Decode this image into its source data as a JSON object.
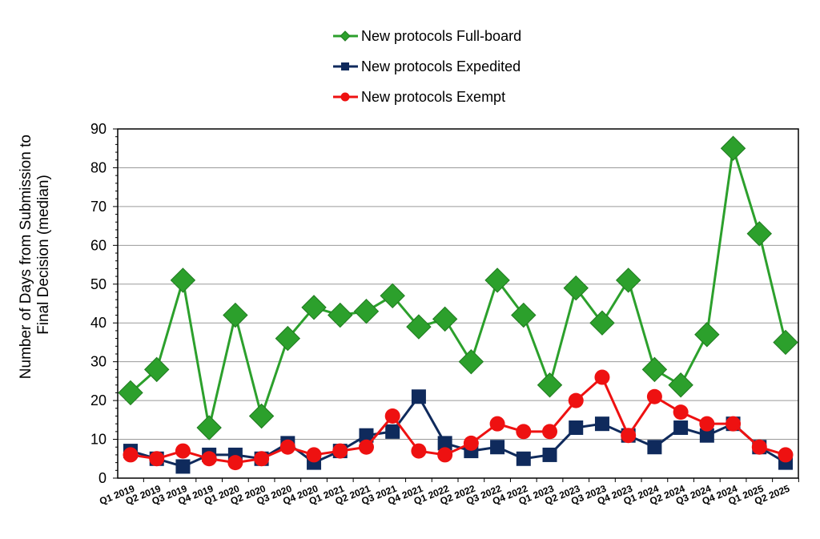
{
  "chart_data": {
    "type": "line",
    "ylabel": [
      "Number of Days from Submission to",
      "Final Decision (median)"
    ],
    "ylim": [
      0,
      90
    ],
    "yticks": [
      0,
      10,
      20,
      30,
      40,
      50,
      60,
      70,
      80,
      90
    ],
    "grid": "horizontal",
    "legend_position": "top-center",
    "categories": [
      "Q1 2019",
      "Q2 2019",
      "Q3 2019",
      "Q4 2019",
      "Q1 2020",
      "Q2 2020",
      "Q3 2020",
      "Q4 2020",
      "Q1 2021",
      "Q2 2021",
      "Q3 2021",
      "Q4 2021",
      "Q1 2022",
      "Q2 2022",
      "Q3 2022",
      "Q4 2022",
      "Q1 2023",
      "Q2 2023",
      "Q3 2023",
      "Q4 2023",
      "Q1 2024",
      "Q2 2024",
      "Q3 2024",
      "Q4 2024",
      "Q1 2025",
      "Q2 2025"
    ],
    "series": [
      {
        "name": "New protocols Full-board",
        "color": "#2ca02c",
        "marker": "diamond",
        "values": [
          22,
          28,
          51,
          13,
          42,
          16,
          36,
          44,
          42,
          43,
          47,
          39,
          41,
          30,
          51,
          42,
          24,
          49,
          40,
          51,
          28,
          24,
          37,
          85,
          63,
          35
        ]
      },
      {
        "name": "New protocols Expedited",
        "color": "#0f2a5c",
        "marker": "square",
        "values": [
          7,
          5,
          3,
          6,
          6,
          5,
          9,
          4,
          7,
          11,
          12,
          21,
          9,
          7,
          8,
          5,
          6,
          13,
          14,
          11,
          8,
          13,
          11,
          14,
          8,
          4
        ]
      },
      {
        "name": "New protocols Exempt",
        "color": "#ee1111",
        "marker": "circle",
        "values": [
          6,
          5,
          7,
          5,
          4,
          5,
          8,
          6,
          7,
          8,
          16,
          7,
          6,
          9,
          14,
          12,
          12,
          20,
          26,
          11,
          21,
          17,
          14,
          14,
          8,
          6
        ]
      }
    ]
  }
}
